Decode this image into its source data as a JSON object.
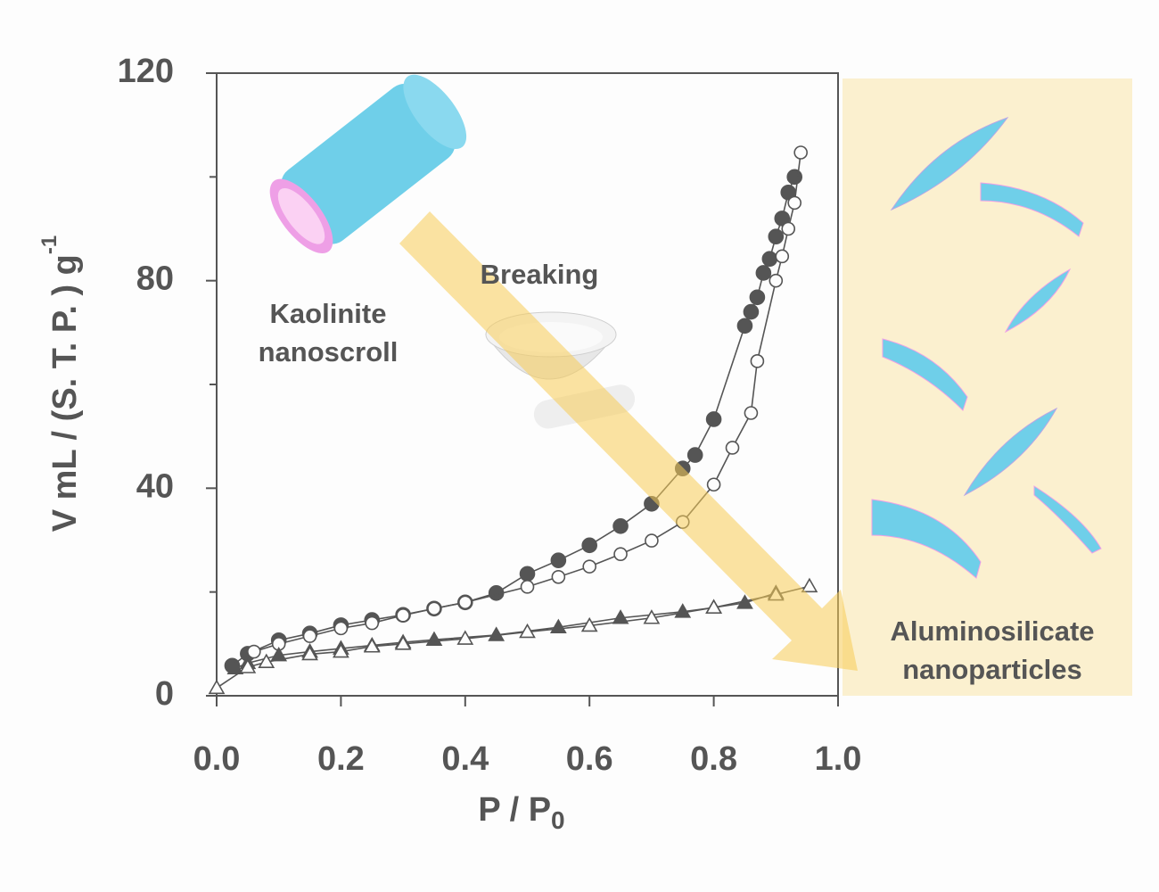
{
  "chart_data": {
    "type": "scatter-line",
    "y_label": {
      "text": "V mL / (S. T. P. ) g",
      "sup": "-1"
    },
    "x_label": {
      "text": "P / P",
      "sub": "0"
    },
    "xlim": [
      0,
      1
    ],
    "ylim": [
      0,
      120
    ],
    "xticks": [
      {
        "value": 0,
        "label": "0.0"
      },
      0.2,
      0.4,
      0.6,
      0.8,
      {
        "value": 1,
        "label": "1.0"
      }
    ],
    "yticks": [
      0,
      40,
      80,
      120
    ],
    "yticks_minor": [
      20,
      60,
      100
    ],
    "annotations": {
      "start": [
        "Kaolinite",
        "nanoscroll"
      ],
      "process": "Breaking",
      "end": [
        "Aluminosilicate",
        "nanoparticles"
      ]
    },
    "series": [
      {
        "color": "#555555",
        "marker": "circle",
        "filled": true,
        "x": [
          0.025,
          0.05,
          0.1,
          0.15,
          0.2,
          0.25,
          0.3,
          0.35,
          0.4,
          0.45,
          0.5,
          0.55,
          0.6,
          0.65,
          0.7,
          0.75,
          0.77,
          0.8,
          0.85,
          0.86,
          0.87,
          0.88,
          0.89,
          0.9,
          0.91,
          0.92,
          0.93
        ],
        "values": [
          5.8,
          8.1,
          10.7,
          12,
          13.6,
          14.6,
          15.6,
          16.8,
          18,
          19.8,
          23.5,
          26.1,
          29,
          32.7,
          37,
          43.8,
          46.4,
          53.3,
          71.3,
          74,
          76.8,
          81.5,
          84.2,
          88.5,
          92,
          97,
          100
        ]
      },
      {
        "color": "#555555",
        "marker": "circle",
        "filled": false,
        "x": [
          0.06,
          0.1,
          0.15,
          0.2,
          0.25,
          0.3,
          0.35,
          0.4,
          0.5,
          0.55,
          0.6,
          0.65,
          0.7,
          0.75,
          0.8,
          0.83,
          0.86,
          0.87,
          0.9,
          0.91,
          0.92,
          0.93,
          0.94
        ],
        "values": [
          8.5,
          10,
          11.5,
          13,
          14,
          15.5,
          16.8,
          18,
          21,
          22.9,
          24.9,
          27.3,
          29.9,
          33.5,
          40.7,
          47.8,
          54.5,
          64.5,
          80,
          84.7,
          90,
          95,
          104.7
        ]
      },
      {
        "color": "#555555",
        "marker": "triangle",
        "filled": true,
        "x": [
          0.03,
          0.05,
          0.1,
          0.15,
          0.2,
          0.25,
          0.3,
          0.35,
          0.45,
          0.55,
          0.65,
          0.75,
          0.8,
          0.85,
          0.9
        ],
        "values": [
          5.3,
          6.3,
          7.8,
          8.5,
          9.1,
          9.7,
          10.3,
          10.8,
          11.7,
          13.2,
          15,
          16.2,
          17,
          17.9,
          19.8
        ]
      },
      {
        "color": "#555555",
        "marker": "triangle",
        "filled": false,
        "x": [
          0,
          0.05,
          0.08,
          0.15,
          0.2,
          0.25,
          0.3,
          0.4,
          0.5,
          0.6,
          0.7,
          0.8,
          0.9,
          0.954
        ],
        "values": [
          1.5,
          5.5,
          6.5,
          8,
          8.5,
          9.5,
          10,
          11,
          12.3,
          13.5,
          15,
          17,
          19.5,
          21.1
        ]
      }
    ]
  }
}
